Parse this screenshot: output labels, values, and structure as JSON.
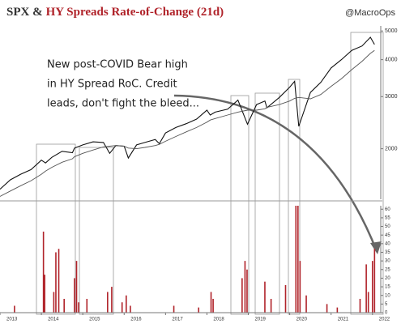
{
  "chart_data": [
    {
      "type": "line",
      "title": {
        "prefix": "SPX &",
        "highlight": "HY Spreads Rate-of-Change (21d)"
      },
      "title_highlight_color": "#b0232a",
      "source": "@MacroOps",
      "annotation": [
        "New post-COVID Bear high",
        "in HY Spread RoC. Credit",
        "leads, don't fight the bleed..."
      ],
      "x": [
        2013.0,
        2013.25,
        2013.5,
        2013.75,
        2014.0,
        2014.1,
        2014.25,
        2014.5,
        2014.75,
        2014.8,
        2015.0,
        2015.25,
        2015.5,
        2015.65,
        2015.8,
        2016.0,
        2016.1,
        2016.3,
        2016.5,
        2016.75,
        2016.85,
        2017.0,
        2017.25,
        2017.5,
        2017.75,
        2018.0,
        2018.08,
        2018.2,
        2018.5,
        2018.75,
        2018.98,
        2019.2,
        2019.4,
        2019.45,
        2019.75,
        2020.0,
        2020.12,
        2020.22,
        2020.5,
        2020.75,
        2021.0,
        2021.25,
        2021.5,
        2021.75,
        2021.95,
        2022.05
      ],
      "series": [
        {
          "color": "#111111",
          "values": [
            1460,
            1570,
            1640,
            1700,
            1830,
            1790,
            1870,
            1960,
            1940,
            2010,
            2060,
            2110,
            2100,
            1930,
            2050,
            2040,
            1860,
            2060,
            2100,
            2150,
            2080,
            2260,
            2360,
            2430,
            2520,
            2700,
            2600,
            2660,
            2720,
            2920,
            2420,
            2820,
            2900,
            2750,
            2980,
            3230,
            3380,
            2380,
            3100,
            3350,
            3750,
            4000,
            4300,
            4450,
            4760,
            4500
          ]
        },
        {
          "color": "#555555",
          "values": [
            1380,
            1440,
            1500,
            1560,
            1640,
            1680,
            1730,
            1800,
            1850,
            1880,
            1930,
            1980,
            2030,
            2040,
            2050,
            2040,
            2010,
            2000,
            2020,
            2050,
            2070,
            2120,
            2200,
            2280,
            2360,
            2460,
            2500,
            2530,
            2600,
            2660,
            2700,
            2700,
            2730,
            2760,
            2820,
            2900,
            2960,
            2980,
            2950,
            3050,
            3250,
            3450,
            3700,
            3950,
            4200,
            4300
          ]
        }
      ],
      "xlim": [
        2013,
        2022.2
      ],
      "ylim": [
        1350,
        5200
      ],
      "yticks": [
        2000,
        3000,
        4000,
        5000
      ],
      "log_scale": true
    },
    {
      "type": "bar",
      "x": [
        2013.35,
        2014.05,
        2014.08,
        2014.3,
        2014.35,
        2014.42,
        2014.55,
        2014.8,
        2014.85,
        2014.9,
        2015.1,
        2015.6,
        2015.7,
        2015.95,
        2016.05,
        2016.15,
        2017.2,
        2017.8,
        2018.1,
        2018.15,
        2018.85,
        2018.92,
        2018.97,
        2019.4,
        2019.55,
        2019.9,
        2020.15,
        2020.2,
        2020.25,
        2020.4,
        2020.9,
        2021.15,
        2021.7,
        2021.85,
        2021.9,
        2022.0,
        2022.05
      ],
      "values": [
        4,
        47,
        22,
        12,
        35,
        37,
        8,
        20,
        30,
        6,
        8,
        12,
        15,
        6,
        10,
        4,
        4,
        3,
        12,
        8,
        20,
        30,
        25,
        18,
        8,
        16,
        62,
        62,
        30,
        10,
        5,
        3,
        8,
        28,
        12,
        30,
        37
      ],
      "color": "#b0232a",
      "xlim": [
        2013,
        2022.2
      ],
      "xticks": [
        2013,
        2014,
        2015,
        2016,
        2017,
        2018,
        2019,
        2020,
        2021,
        2022
      ],
      "ylim": [
        0,
        62
      ],
      "yticks": [
        0,
        5,
        10,
        15,
        20,
        25,
        30,
        35,
        40,
        45,
        50,
        55,
        60
      ]
    }
  ]
}
